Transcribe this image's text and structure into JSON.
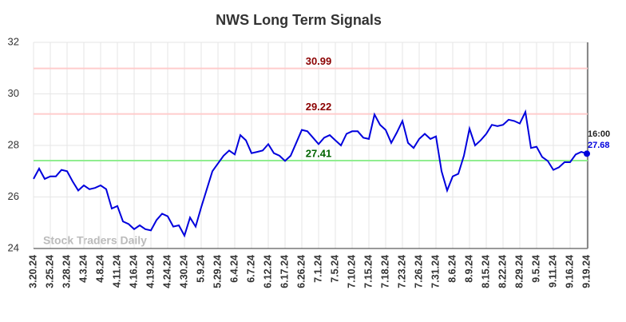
{
  "chart_data": {
    "type": "line",
    "title": "NWS Long Term Signals",
    "categories": [
      "3.20.24",
      null,
      null,
      "3.25.24",
      null,
      null,
      "3.28.24",
      null,
      null,
      "4.3.24",
      null,
      null,
      "4.8.24",
      null,
      null,
      "4.11.24",
      null,
      null,
      "4.16.24",
      null,
      null,
      "4.19.24",
      null,
      null,
      "4.24.24",
      null,
      null,
      "4.30.24",
      null,
      null,
      "5.9.24",
      null,
      null,
      "5.29.24",
      null,
      null,
      "6.4.24",
      null,
      null,
      "6.7.24",
      null,
      null,
      "6.12.24",
      null,
      null,
      "6.17.24",
      null,
      null,
      "6.26.24",
      null,
      null,
      "7.1.24",
      null,
      null,
      "7.5.24",
      null,
      null,
      "7.10.24",
      null,
      null,
      "7.15.24",
      null,
      null,
      "7.18.24",
      null,
      null,
      "7.23.24",
      null,
      null,
      "7.26.24",
      null,
      null,
      "7.31.24",
      null,
      null,
      "8.6.24",
      null,
      null,
      "8.9.24",
      null,
      null,
      "8.15.24",
      null,
      null,
      "8.22.24",
      null,
      null,
      "8.29.24",
      null,
      null,
      "9.5.24",
      null,
      null,
      "9.11.24",
      null,
      null,
      "9.16.24",
      null,
      null,
      "9.19.24"
    ],
    "series": [
      {
        "color": "#0000dd",
        "values": [
          26.7,
          27.1,
          26.7,
          26.8,
          26.8,
          27.05,
          27.0,
          26.6,
          26.25,
          26.45,
          26.3,
          26.35,
          26.45,
          26.3,
          25.55,
          25.65,
          25.05,
          24.95,
          24.75,
          24.9,
          24.75,
          24.7,
          25.1,
          25.35,
          25.25,
          24.85,
          24.9,
          24.5,
          25.2,
          24.85,
          25.6,
          26.3,
          27.0,
          27.3,
          27.6,
          27.8,
          27.65,
          28.4,
          28.2,
          27.7,
          27.75,
          27.8,
          28.05,
          27.7,
          27.6,
          27.4,
          27.6,
          28.1,
          28.6,
          28.55,
          28.3,
          28.05,
          28.3,
          28.4,
          28.2,
          28.0,
          28.45,
          28.55,
          28.55,
          28.3,
          28.25,
          29.2,
          28.8,
          28.6,
          28.1,
          28.5,
          28.95,
          28.1,
          27.9,
          28.25,
          28.45,
          28.25,
          28.35,
          27.0,
          26.25,
          26.8,
          26.9,
          27.6,
          28.65,
          28.0,
          28.2,
          28.45,
          28.8,
          28.75,
          28.8,
          29.0,
          28.95,
          28.85,
          29.3,
          27.9,
          27.95,
          27.55,
          27.4,
          27.05,
          27.15,
          27.35,
          27.35,
          27.65,
          27.75,
          27.68
        ]
      }
    ],
    "hlines": [
      {
        "value": 30.99,
        "color": "#ffcccc",
        "label_color": "#8b0000"
      },
      {
        "value": 29.22,
        "color": "#ffcccc",
        "label_color": "#8b0000"
      },
      {
        "value": 27.41,
        "color": "#90ee90",
        "label_color": "#006400"
      }
    ],
    "last_time": "16:00",
    "watermark": "Stock Traders Daily",
    "ylim": [
      24,
      32
    ],
    "yticks": [
      24,
      26,
      28,
      30,
      32
    ],
    "grid": true
  }
}
